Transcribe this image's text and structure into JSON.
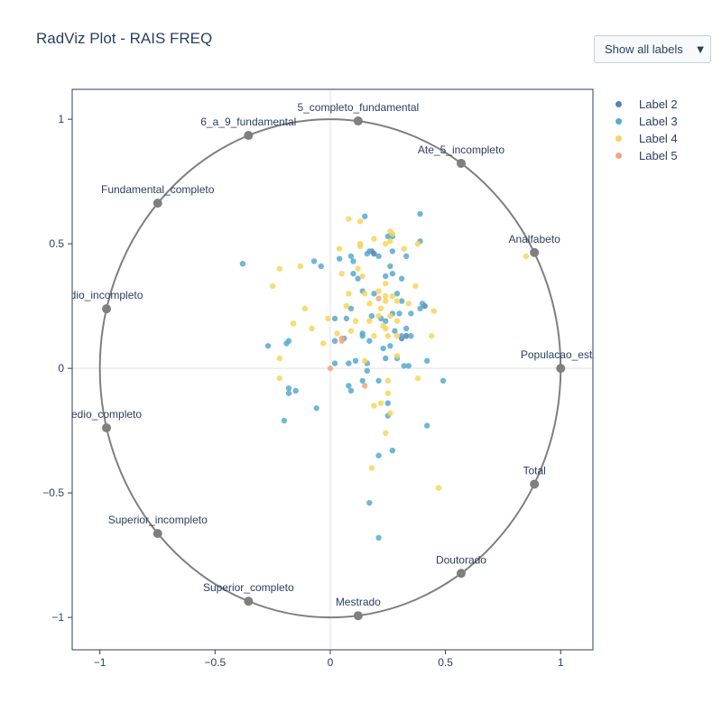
{
  "title": "RadViz Plot - RAIS FREQ",
  "dropdown": {
    "selected_label": "Show all labels",
    "arrow": "▼"
  },
  "chart_data": {
    "type": "scatter",
    "subtype": "radviz",
    "title": "RadViz Plot - RAIS FREQ",
    "xlim": [
      -1.12,
      1.14
    ],
    "ylim": [
      -1.13,
      1.12
    ],
    "x_ticks": [
      -1,
      -0.5,
      0,
      0.5,
      1
    ],
    "y_ticks": [
      -1,
      -0.5,
      0,
      0.5,
      1
    ],
    "x_tick_labels": [
      "−1",
      "−0.5",
      "0",
      "0.5",
      "1"
    ],
    "y_tick_labels": [
      "−1",
      "−0.5",
      "0",
      "0.5",
      "1"
    ],
    "grid": true,
    "legend_position": "top-right",
    "colors": {
      "circle": "#7f7f7f",
      "anchor": "#7f7f7f",
      "grid": "#ebebeb",
      "axis_line": "#2a3f5f",
      "text": "#2a3f5f"
    },
    "anchors": [
      {
        "name": "Populacao_estimada",
        "label_shown": "Populacao_estin",
        "x": 1.0,
        "y": 0.0
      },
      {
        "name": "Analfabeto",
        "label_shown": "Analfabeto",
        "x": 0.886,
        "y": 0.465
      },
      {
        "name": "Ate_5_incompleto",
        "label_shown": "Ate_5_incompleto",
        "x": 0.568,
        "y": 0.823
      },
      {
        "name": "5_completo_fundamental",
        "label_shown": "5_completo_fundamental",
        "x": 0.121,
        "y": 0.993
      },
      {
        "name": "6_a_9_fundamental",
        "label_shown": "6_a_9_fundamental",
        "x": -0.355,
        "y": 0.935
      },
      {
        "name": "Fundamental_completo",
        "label_shown": "Fundamental_completo",
        "x": -0.749,
        "y": 0.663
      },
      {
        "name": "Medio_incompleto",
        "label_shown": "dio_incompleto",
        "x": -0.971,
        "y": 0.239
      },
      {
        "name": "Medio_completo",
        "label_shown": "edio_completo",
        "x": -0.971,
        "y": -0.239
      },
      {
        "name": "Superior_incompleto",
        "label_shown": "Superior_incompleto",
        "x": -0.749,
        "y": -0.663
      },
      {
        "name": "Superior_completo",
        "label_shown": "Superior_completo",
        "x": -0.355,
        "y": -0.935
      },
      {
        "name": "Mestrado",
        "label_shown": "Mestrado",
        "x": 0.121,
        "y": -0.993
      },
      {
        "name": "Doutorado",
        "label_shown": "Doutorado",
        "x": 0.568,
        "y": -0.823
      },
      {
        "name": "Total",
        "label_shown": "Total",
        "x": 0.886,
        "y": -0.465
      }
    ],
    "series": [
      {
        "name": "Label 2",
        "color": "#5b7fb5",
        "points": [
          [
            0.18,
            0.47
          ],
          [
            0.19,
            0.46
          ],
          [
            0.41,
            0.25
          ],
          [
            0.33,
            0.13
          ],
          [
            0.31,
            0.12
          ]
        ]
      },
      {
        "name": "Label 3",
        "color": "#56aacf",
        "points": [
          [
            0.15,
            0.61
          ],
          [
            0.39,
            0.62
          ],
          [
            0.27,
            0.53
          ],
          [
            0.25,
            0.53
          ],
          [
            0.39,
            0.51
          ],
          [
            0.17,
            0.47
          ],
          [
            0.27,
            0.47
          ],
          [
            0.16,
            0.46
          ],
          [
            0.09,
            0.45
          ],
          [
            0.04,
            0.44
          ],
          [
            0.33,
            0.45
          ],
          [
            0.21,
            0.45
          ],
          [
            -0.38,
            0.42
          ],
          [
            -0.04,
            0.41
          ],
          [
            0.1,
            0.43
          ],
          [
            0.26,
            0.41
          ],
          [
            -0.07,
            0.43
          ],
          [
            0.27,
            0.38
          ],
          [
            0.1,
            0.38
          ],
          [
            0.12,
            0.36
          ],
          [
            0.24,
            0.37
          ],
          [
            0.31,
            0.36
          ],
          [
            0.14,
            0.31
          ],
          [
            0.19,
            0.3
          ],
          [
            0.29,
            0.3
          ],
          [
            0.31,
            0.27
          ],
          [
            0.39,
            0.24
          ],
          [
            0.4,
            0.26
          ],
          [
            0.09,
            0.24
          ],
          [
            0.27,
            0.22
          ],
          [
            0.18,
            0.21
          ],
          [
            0.3,
            0.22
          ],
          [
            0.35,
            0.22
          ],
          [
            0.24,
            0.19
          ],
          [
            0.22,
            0.2
          ],
          [
            0.33,
            0.16
          ],
          [
            0.02,
            0.2
          ],
          [
            0.07,
            0.2
          ],
          [
            0.28,
            0.15
          ],
          [
            0.14,
            0.14
          ],
          [
            -0.27,
            0.09
          ],
          [
            -0.18,
            0.11
          ],
          [
            -0.19,
            0.1
          ],
          [
            0.06,
            0.12
          ],
          [
            0.02,
            0.11
          ],
          [
            0.14,
            0.13
          ],
          [
            0.17,
            0.11
          ],
          [
            0.31,
            0.13
          ],
          [
            0.35,
            0.13
          ],
          [
            0.23,
            0.08
          ],
          [
            0.26,
            0.09
          ],
          [
            0.02,
            0.02
          ],
          [
            0.08,
            0.02
          ],
          [
            0.11,
            0.03
          ],
          [
            0.16,
            0.02
          ],
          [
            0.24,
            0.04
          ],
          [
            0.29,
            0.04
          ],
          [
            0.32,
            0.01
          ],
          [
            0.34,
            0.01
          ],
          [
            0.42,
            0.03
          ],
          [
            0.16,
            -0.01
          ],
          [
            0.14,
            -0.05
          ],
          [
            0.21,
            -0.05
          ],
          [
            0.49,
            -0.05
          ],
          [
            -0.15,
            -0.09
          ],
          [
            -0.18,
            -0.08
          ],
          [
            -0.18,
            -0.1
          ],
          [
            0.08,
            -0.07
          ],
          [
            0.09,
            -0.09
          ],
          [
            -0.06,
            -0.16
          ],
          [
            -0.2,
            -0.21
          ],
          [
            0.25,
            -0.14
          ],
          [
            0.25,
            -0.19
          ],
          [
            0.42,
            -0.23
          ],
          [
            0.21,
            -0.35
          ],
          [
            0.27,
            -0.33
          ],
          [
            0.17,
            -0.54
          ],
          [
            0.21,
            -0.68
          ]
        ]
      },
      {
        "name": "Label 4",
        "color": "#f6d55c",
        "points": [
          [
            0.08,
            0.6
          ],
          [
            0.13,
            0.59
          ],
          [
            0.26,
            0.55
          ],
          [
            0.27,
            0.54
          ],
          [
            0.19,
            0.52
          ],
          [
            0.13,
            0.5
          ],
          [
            0.24,
            0.5
          ],
          [
            0.26,
            0.51
          ],
          [
            0.38,
            0.5
          ],
          [
            0.13,
            0.49
          ],
          [
            0.04,
            0.48
          ],
          [
            0.32,
            0.48
          ],
          [
            -0.22,
            0.4
          ],
          [
            -0.13,
            0.41
          ],
          [
            0.12,
            0.4
          ],
          [
            0.05,
            0.38
          ],
          [
            0.14,
            0.37
          ],
          [
            0.24,
            0.34
          ],
          [
            -0.25,
            0.33
          ],
          [
            0.37,
            0.33
          ],
          [
            0.08,
            0.3
          ],
          [
            0.15,
            0.3
          ],
          [
            0.21,
            0.31
          ],
          [
            0.24,
            0.29
          ],
          [
            0.27,
            0.29
          ],
          [
            0.07,
            0.25
          ],
          [
            0.17,
            0.26
          ],
          [
            0.24,
            0.27
          ],
          [
            0.29,
            0.27
          ],
          [
            0.34,
            0.26
          ],
          [
            0.45,
            0.23
          ],
          [
            -0.11,
            0.24
          ],
          [
            0.22,
            0.24
          ],
          [
            -0.01,
            0.2
          ],
          [
            0.11,
            0.19
          ],
          [
            0.17,
            0.19
          ],
          [
            0.23,
            0.17
          ],
          [
            0.29,
            0.19
          ],
          [
            -0.16,
            0.18
          ],
          [
            0.21,
            0.21
          ],
          [
            0.26,
            0.21
          ],
          [
            0.24,
            0.16
          ],
          [
            -0.08,
            0.16
          ],
          [
            0.03,
            0.14
          ],
          [
            0.09,
            0.15
          ],
          [
            0.19,
            0.13
          ],
          [
            0.25,
            0.13
          ],
          [
            0.29,
            0.13
          ],
          [
            0.44,
            0.13
          ],
          [
            -0.03,
            0.1
          ],
          [
            0.85,
            0.45
          ],
          [
            0.15,
            0.03
          ],
          [
            0.29,
            0.05
          ],
          [
            -0.22,
            0.04
          ],
          [
            0.38,
            -0.04
          ],
          [
            -0.22,
            -0.04
          ],
          [
            0.25,
            -0.05
          ],
          [
            0.25,
            -0.1
          ],
          [
            0.22,
            -0.14
          ],
          [
            0.19,
            -0.15
          ],
          [
            0.26,
            -0.18
          ],
          [
            0.24,
            -0.26
          ],
          [
            0.18,
            -0.4
          ],
          [
            0.47,
            -0.48
          ]
        ]
      },
      {
        "name": "Label 5",
        "color": "#f4a582",
        "points": [
          [
            0.0,
            0.0
          ],
          [
            0.05,
            0.11
          ],
          [
            0.05,
            0.12
          ],
          [
            0.15,
            -0.07
          ],
          [
            0.21,
            0.28
          ]
        ]
      }
    ]
  }
}
